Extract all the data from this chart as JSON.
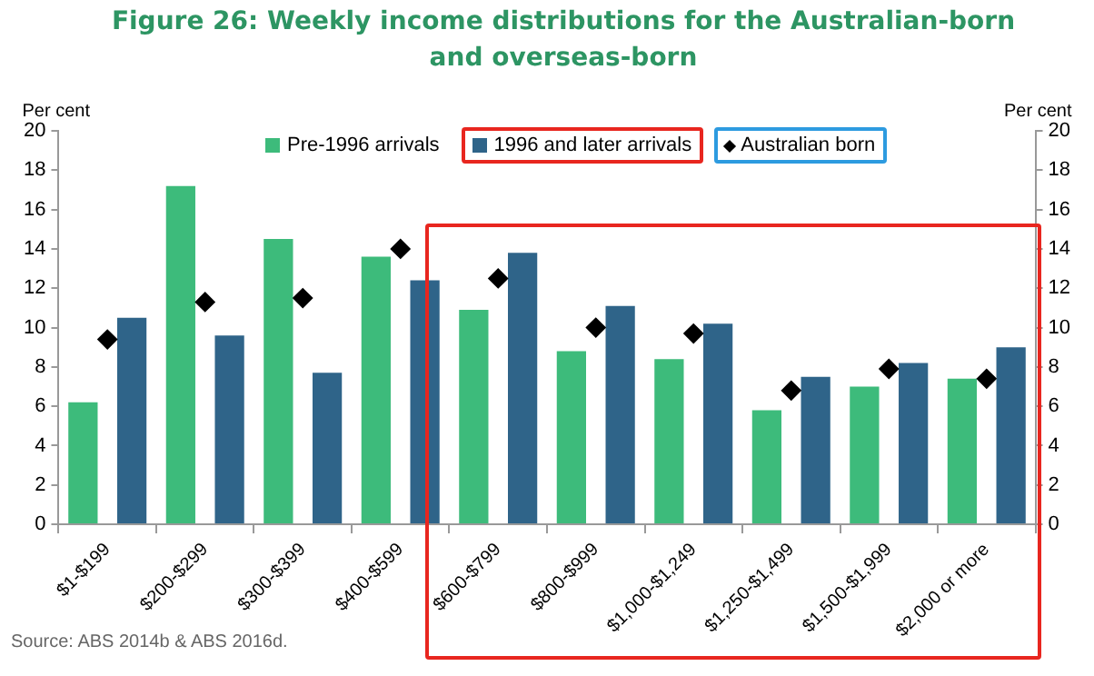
{
  "chart_data": {
    "type": "bar",
    "title": "Figure 26: Weekly income distributions for the Australian-born and overseas-born",
    "ylabel": "Per cent",
    "y2label": "Per cent",
    "categories": [
      "$1-$199",
      "$200-$299",
      "$300-$399",
      "$400-$599",
      "$600-$799",
      "$800-$999",
      "$1,000-$1,249",
      "$1,250-$1,499",
      "$1,500-$1,999",
      "$2,000 or more"
    ],
    "series": [
      {
        "name": "Pre-1996 arrivals",
        "type": "bar",
        "color": "#3dbb7b",
        "values": [
          6.2,
          17.2,
          14.5,
          13.6,
          10.9,
          8.8,
          8.4,
          5.8,
          7.0,
          7.4
        ]
      },
      {
        "name": "1996 and later arrivals",
        "type": "bar",
        "color": "#2f6489",
        "values": [
          10.5,
          9.6,
          7.7,
          12.4,
          13.8,
          11.1,
          10.2,
          7.5,
          8.2,
          9.0
        ]
      },
      {
        "name": "Australian born",
        "type": "scatter",
        "marker": "diamond",
        "color": "#000000",
        "values": [
          9.4,
          11.3,
          11.5,
          14.0,
          12.5,
          10.0,
          9.7,
          6.8,
          7.9,
          7.4
        ]
      }
    ],
    "ylim": [
      0,
      20
    ],
    "yticks": [
      0,
      2,
      4,
      6,
      8,
      10,
      12,
      14,
      16,
      18,
      20
    ],
    "y2lim": [
      0,
      20
    ],
    "y2ticks": [
      0,
      2,
      4,
      6,
      8,
      10,
      12,
      14,
      16,
      18,
      20
    ],
    "grid": false,
    "legend": "top",
    "annotations": [
      "Source: ABS 2014b & ABS 2016d."
    ]
  }
}
